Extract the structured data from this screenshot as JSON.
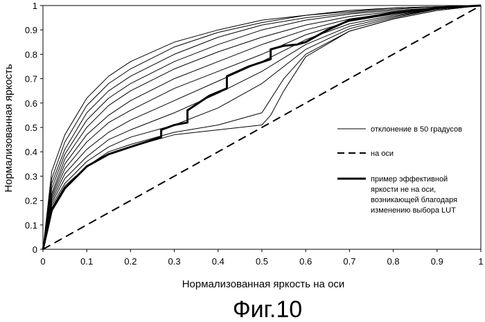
{
  "chart_data": {
    "type": "line",
    "xlabel": "Нормализованная яркость на оси",
    "ylabel": "Нормализованная яркость",
    "caption": "Фиг.10",
    "xlim": [
      0,
      1
    ],
    "ylim": [
      0,
      1
    ],
    "x_ticks": [
      "0",
      "0.1",
      "0.2",
      "0.3",
      "0.4",
      "0.5",
      "0.6",
      "0.7",
      "0.8",
      "0.9",
      "1"
    ],
    "y_ticks": [
      "0",
      "0.1",
      "0.2",
      "0.3",
      "0.4",
      "0.5",
      "0.6",
      "0.7",
      "0.8",
      "0.9",
      "1"
    ],
    "grid": false,
    "legend_position": "right",
    "legend": [
      {
        "label": "отклонение в 50 градусов",
        "style": "thin"
      },
      {
        "label": "на оси",
        "style": "dashed"
      },
      {
        "label": "пример эффективной яркости не на оси, возникающей благодаря изменению выбора LUT",
        "lines": [
          "пример эффективной",
          "яркости не на оси,",
          "возникающей благодаря",
          "изменению выбора LUT"
        ],
        "style": "bold"
      }
    ],
    "series": [
      {
        "style": "dashed",
        "x": [
          0,
          1
        ],
        "y": [
          0,
          1
        ]
      },
      {
        "style": "thin",
        "x": [
          0,
          0.02,
          0.05,
          0.1,
          0.15,
          0.2,
          0.3,
          0.4,
          0.5,
          0.6,
          0.7,
          0.8,
          0.9,
          1
        ],
        "y": [
          0,
          0.32,
          0.47,
          0.62,
          0.71,
          0.77,
          0.85,
          0.9,
          0.94,
          0.96,
          0.98,
          0.99,
          0.995,
          1
        ]
      },
      {
        "style": "thin",
        "x": [
          0,
          0.02,
          0.05,
          0.1,
          0.15,
          0.2,
          0.3,
          0.4,
          0.5,
          0.6,
          0.7,
          0.8,
          0.9,
          1
        ],
        "y": [
          0,
          0.29,
          0.44,
          0.59,
          0.68,
          0.74,
          0.83,
          0.89,
          0.93,
          0.96,
          0.975,
          0.99,
          0.995,
          1
        ]
      },
      {
        "style": "thin",
        "x": [
          0,
          0.02,
          0.05,
          0.1,
          0.15,
          0.2,
          0.3,
          0.4,
          0.5,
          0.6,
          0.7,
          0.8,
          0.9,
          1
        ],
        "y": [
          0,
          0.27,
          0.41,
          0.56,
          0.65,
          0.71,
          0.8,
          0.87,
          0.92,
          0.95,
          0.97,
          0.985,
          0.995,
          1
        ]
      },
      {
        "style": "thin",
        "x": [
          0,
          0.02,
          0.05,
          0.1,
          0.15,
          0.2,
          0.3,
          0.4,
          0.5,
          0.6,
          0.7,
          0.8,
          0.9,
          1
        ],
        "y": [
          0,
          0.25,
          0.39,
          0.53,
          0.62,
          0.68,
          0.77,
          0.84,
          0.9,
          0.94,
          0.965,
          0.98,
          0.99,
          1
        ]
      },
      {
        "style": "thin",
        "x": [
          0,
          0.02,
          0.05,
          0.1,
          0.15,
          0.2,
          0.3,
          0.4,
          0.5,
          0.6,
          0.7,
          0.8,
          0.9,
          1
        ],
        "y": [
          0,
          0.23,
          0.37,
          0.5,
          0.59,
          0.65,
          0.74,
          0.81,
          0.87,
          0.92,
          0.955,
          0.975,
          0.99,
          1
        ]
      },
      {
        "style": "thin",
        "x": [
          0,
          0.02,
          0.05,
          0.1,
          0.15,
          0.2,
          0.3,
          0.4,
          0.5,
          0.6,
          0.7,
          0.8,
          0.9,
          1
        ],
        "y": [
          0,
          0.22,
          0.35,
          0.47,
          0.55,
          0.61,
          0.7,
          0.77,
          0.84,
          0.9,
          0.945,
          0.97,
          0.99,
          1
        ]
      },
      {
        "style": "thin",
        "x": [
          0,
          0.02,
          0.05,
          0.1,
          0.15,
          0.2,
          0.3,
          0.4,
          0.5,
          0.6,
          0.7,
          0.8,
          0.9,
          1
        ],
        "y": [
          0,
          0.21,
          0.33,
          0.44,
          0.52,
          0.57,
          0.66,
          0.73,
          0.8,
          0.88,
          0.935,
          0.965,
          0.985,
          1
        ]
      },
      {
        "style": "thin",
        "x": [
          0,
          0.02,
          0.05,
          0.1,
          0.15,
          0.2,
          0.3,
          0.4,
          0.5,
          0.6,
          0.7,
          0.8,
          0.9,
          1
        ],
        "y": [
          0,
          0.2,
          0.31,
          0.41,
          0.48,
          0.53,
          0.61,
          0.69,
          0.77,
          0.86,
          0.925,
          0.96,
          0.985,
          1
        ]
      },
      {
        "style": "thin",
        "x": [
          0,
          0.02,
          0.05,
          0.1,
          0.15,
          0.2,
          0.3,
          0.4,
          0.5,
          0.6,
          0.7,
          0.8,
          0.9,
          1
        ],
        "y": [
          0,
          0.19,
          0.29,
          0.38,
          0.45,
          0.49,
          0.56,
          0.64,
          0.73,
          0.84,
          0.915,
          0.955,
          0.985,
          1
        ]
      },
      {
        "style": "thin",
        "x": [
          0,
          0.02,
          0.05,
          0.1,
          0.15,
          0.2,
          0.3,
          0.4,
          0.5,
          0.6,
          0.7,
          0.8,
          0.9,
          1
        ],
        "y": [
          0,
          0.18,
          0.27,
          0.36,
          0.42,
          0.46,
          0.51,
          0.58,
          0.68,
          0.82,
          0.905,
          0.95,
          0.985,
          1
        ]
      },
      {
        "style": "thin",
        "x": [
          0,
          0.02,
          0.05,
          0.1,
          0.15,
          0.2,
          0.3,
          0.4,
          0.5,
          0.55,
          0.6,
          0.7,
          0.8,
          0.9,
          1
        ],
        "y": [
          0,
          0.17,
          0.26,
          0.34,
          0.4,
          0.43,
          0.48,
          0.51,
          0.56,
          0.7,
          0.8,
          0.895,
          0.945,
          0.98,
          1
        ]
      },
      {
        "style": "thin",
        "x": [
          0,
          0.02,
          0.05,
          0.1,
          0.15,
          0.2,
          0.3,
          0.4,
          0.45,
          0.5,
          0.52,
          0.55,
          0.6,
          0.7,
          0.8,
          0.9,
          1
        ],
        "y": [
          0,
          0.16,
          0.25,
          0.34,
          0.39,
          0.42,
          0.47,
          0.49,
          0.5,
          0.51,
          0.55,
          0.65,
          0.79,
          0.895,
          0.945,
          0.98,
          1
        ]
      },
      {
        "style": "bold",
        "x": [
          0,
          0.02,
          0.05,
          0.1,
          0.15,
          0.2,
          0.27,
          0.27,
          0.3,
          0.33,
          0.33,
          0.38,
          0.42,
          0.42,
          0.47,
          0.52,
          0.52,
          0.55,
          0.58,
          0.6,
          0.65,
          0.7,
          0.8,
          0.9,
          1
        ],
        "y": [
          0,
          0.16,
          0.25,
          0.34,
          0.39,
          0.42,
          0.46,
          0.49,
          0.51,
          0.52,
          0.57,
          0.63,
          0.66,
          0.71,
          0.75,
          0.78,
          0.82,
          0.835,
          0.84,
          0.85,
          0.9,
          0.94,
          0.97,
          0.99,
          1
        ]
      }
    ]
  }
}
